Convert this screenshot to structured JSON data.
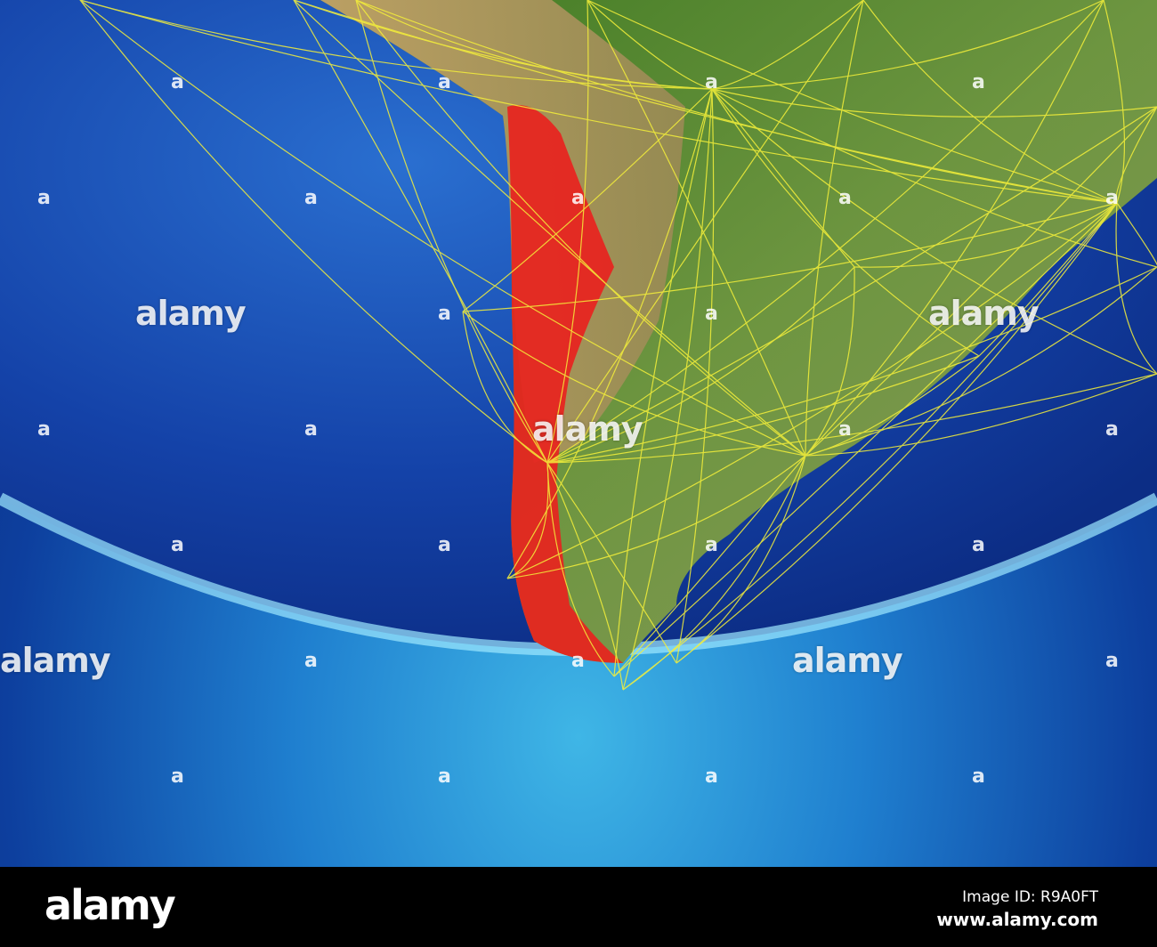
{
  "watermark": {
    "text": "alamy",
    "small_mark": "a"
  },
  "footer": {
    "logo": "alamy",
    "image_id": "Image ID: R9A0FT",
    "site": "www.alamy.com"
  },
  "colors": {
    "ocean": "#1550b8",
    "land": "#5d8a2e",
    "highlight_country": "#e8231e",
    "network_lines": "#f5f03a",
    "atmosphere": "#7fdcf5"
  },
  "highlighted_country": "Chile"
}
